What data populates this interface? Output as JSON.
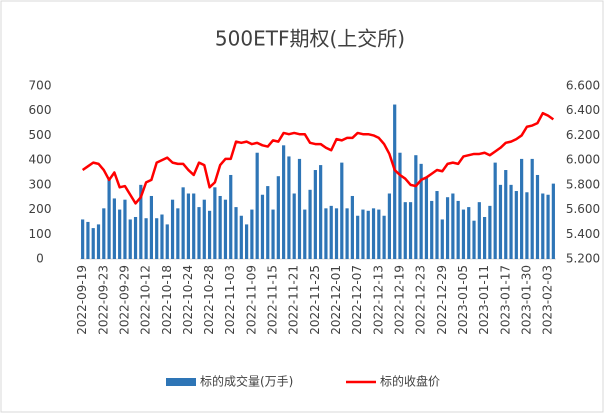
{
  "chart_data": {
    "type": "bar",
    "title": "500ETF期权(上交所)",
    "categories": [
      "2022-09-19",
      null,
      null,
      null,
      "2022-09-23",
      null,
      null,
      null,
      "2022-09-29",
      null,
      null,
      null,
      "2022-10-12",
      null,
      null,
      null,
      "2022-10-18",
      null,
      null,
      null,
      "2022-10-24",
      null,
      null,
      null,
      "2022-10-28",
      null,
      null,
      null,
      "2022-11-03",
      null,
      null,
      null,
      "2022-11-09",
      null,
      null,
      null,
      "2022-11-15",
      null,
      null,
      null,
      "2022-11-21",
      null,
      null,
      null,
      "2022-11-25",
      null,
      null,
      null,
      "2022-12-01",
      null,
      null,
      null,
      "2022-12-07",
      null,
      null,
      null,
      "2022-12-13",
      null,
      null,
      null,
      "2022-12-19",
      null,
      null,
      null,
      "2022-12-23",
      null,
      null,
      null,
      "2022-12-29",
      null,
      null,
      null,
      "2023-01-05",
      null,
      null,
      null,
      "2023-01-11",
      null,
      null,
      null,
      "2023-01-17",
      null,
      null,
      null,
      "2023-01-30",
      null,
      null,
      null,
      "2023-02-03",
      null
    ],
    "series": [
      {
        "name": "标的成交量(万手)",
        "type": "bar",
        "color": "#2e75b6",
        "values": [
          160,
          150,
          125,
          140,
          205,
          330,
          245,
          200,
          240,
          160,
          170,
          300,
          165,
          255,
          165,
          180,
          140,
          240,
          205,
          290,
          265,
          265,
          210,
          240,
          195,
          290,
          255,
          240,
          340,
          210,
          175,
          140,
          200,
          430,
          260,
          295,
          200,
          335,
          460,
          415,
          265,
          405,
          200,
          280,
          360,
          380,
          205,
          215,
          205,
          390,
          205,
          255,
          175,
          200,
          195,
          205,
          200,
          175,
          265,
          625,
          430,
          230,
          230,
          420,
          385,
          330,
          235,
          275,
          160,
          250,
          265,
          235,
          200,
          210,
          155,
          230,
          170,
          215,
          390,
          300,
          360,
          300,
          275,
          405,
          270,
          405,
          340,
          265,
          260,
          305
        ]
      },
      {
        "name": "标的收盘价",
        "type": "line",
        "axis": "y2",
        "color": "#ff0000",
        "values": [
          5.92,
          5.95,
          5.98,
          5.97,
          5.92,
          5.84,
          5.9,
          5.78,
          5.79,
          5.72,
          5.65,
          5.7,
          5.82,
          5.84,
          5.98,
          6.0,
          6.02,
          5.98,
          5.97,
          5.97,
          5.92,
          5.88,
          5.98,
          5.96,
          5.78,
          5.82,
          5.96,
          6.01,
          6.01,
          6.15,
          6.14,
          6.15,
          6.13,
          6.14,
          6.12,
          6.11,
          6.16,
          6.15,
          6.22,
          6.21,
          6.22,
          6.21,
          6.21,
          6.14,
          6.13,
          6.13,
          6.1,
          6.08,
          6.17,
          6.16,
          6.18,
          6.18,
          6.22,
          6.21,
          6.21,
          6.2,
          6.18,
          6.13,
          6.05,
          5.92,
          5.88,
          5.85,
          5.8,
          5.79,
          5.84,
          5.86,
          5.89,
          5.92,
          5.91,
          5.97,
          5.98,
          5.97,
          6.03,
          6.04,
          6.05,
          6.05,
          6.06,
          6.04,
          6.07,
          6.1,
          6.14,
          6.15,
          6.17,
          6.2,
          6.27,
          6.28,
          6.3,
          6.38,
          6.36,
          6.33
        ]
      }
    ],
    "ylim": [
      0,
      700
    ],
    "yticks": [
      0,
      100,
      200,
      300,
      400,
      500,
      600,
      700
    ],
    "y2lim": [
      5.2,
      6.6
    ],
    "y2ticks": [
      {
        "value": 5.2,
        "label": "5.200"
      },
      {
        "value": 5.4,
        "label": "5.400"
      },
      {
        "value": 5.6,
        "label": "5.600"
      },
      {
        "value": 5.8,
        "label": "5.800"
      },
      {
        "value": 6.0,
        "label": "6.000"
      },
      {
        "value": 6.2,
        "label": "6.200"
      },
      {
        "value": 6.4,
        "label": "6.400"
      },
      {
        "value": 6.6,
        "label": "6.600"
      }
    ],
    "legend": "bottom"
  }
}
